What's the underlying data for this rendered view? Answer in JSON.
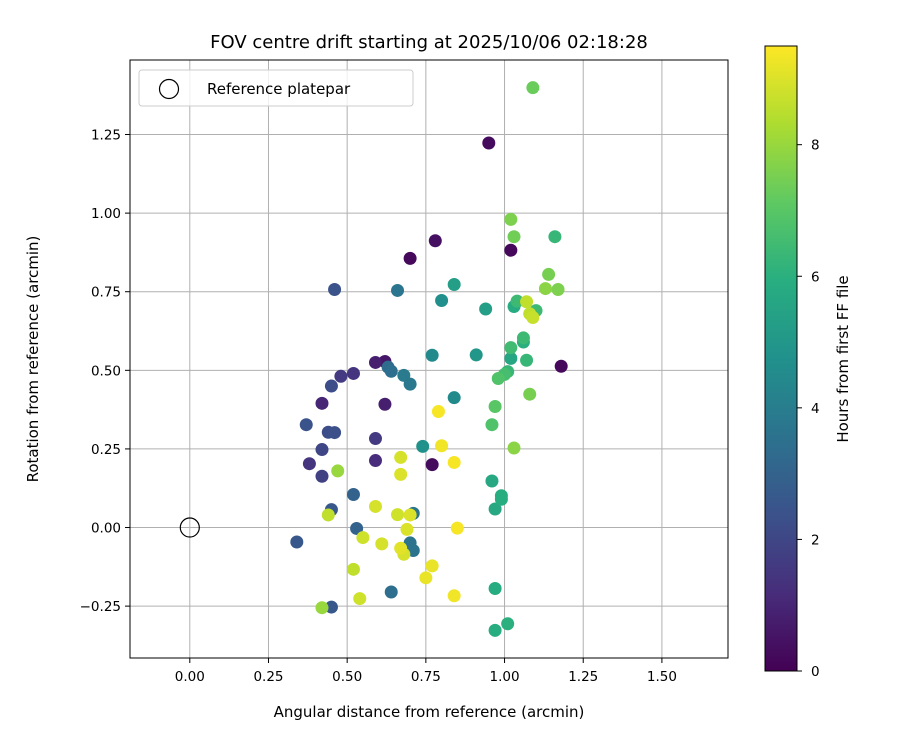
{
  "chart_data": {
    "type": "scatter",
    "title": "FOV centre drift starting at 2025/10/06 02:18:28",
    "xlabel": "Angular distance from reference (arcmin)",
    "ylabel": "Rotation from reference (arcmin)",
    "xlim": [
      -0.19,
      1.71
    ],
    "ylim": [
      -0.415,
      1.487
    ],
    "xticks": [
      0.0,
      0.25,
      0.5,
      0.75,
      1.0,
      1.25,
      1.5
    ],
    "xtick_labels": [
      "0.00",
      "0.25",
      "0.50",
      "0.75",
      "1.00",
      "1.25",
      "1.50"
    ],
    "yticks": [
      -0.25,
      0.0,
      0.25,
      0.5,
      0.75,
      1.0,
      1.25
    ],
    "ytick_labels": [
      "−0.25",
      "0.00",
      "0.25",
      "0.50",
      "0.75",
      "1.00",
      "1.25"
    ],
    "grid": true,
    "legend": {
      "position": "top-left",
      "entries": [
        "Reference platepar"
      ]
    },
    "reference_point": {
      "x": 0.0,
      "y": 0.0,
      "label": "Reference platepar"
    },
    "colorbar": {
      "label": "Hours from first FF file",
      "colormap": "viridis",
      "range": [
        0,
        9.5
      ],
      "ticks": [
        0,
        2,
        4,
        6,
        8
      ],
      "tick_labels": [
        "0",
        "2",
        "4",
        "6",
        "8"
      ]
    },
    "points": [
      {
        "x": 0.95,
        "y": 1.223,
        "h": 0.3
      },
      {
        "x": 1.18,
        "y": 0.513,
        "h": 0.2
      },
      {
        "x": 0.78,
        "y": 0.912,
        "h": 0.4
      },
      {
        "x": 0.7,
        "y": 0.856,
        "h": 0.2
      },
      {
        "x": 1.02,
        "y": 0.882,
        "h": 0.2
      },
      {
        "x": 0.77,
        "y": 0.2,
        "h": 0.3
      },
      {
        "x": 0.62,
        "y": 0.528,
        "h": 0.6
      },
      {
        "x": 0.59,
        "y": 0.525,
        "h": 0.8
      },
      {
        "x": 0.62,
        "y": 0.392,
        "h": 0.8
      },
      {
        "x": 0.42,
        "y": 0.395,
        "h": 1.0
      },
      {
        "x": 0.59,
        "y": 0.213,
        "h": 1.2
      },
      {
        "x": 0.38,
        "y": 0.203,
        "h": 1.4
      },
      {
        "x": 0.52,
        "y": 0.49,
        "h": 1.4
      },
      {
        "x": 0.48,
        "y": 0.481,
        "h": 1.6
      },
      {
        "x": 0.59,
        "y": 0.283,
        "h": 1.6
      },
      {
        "x": 0.42,
        "y": 0.163,
        "h": 1.8
      },
      {
        "x": 0.42,
        "y": 0.248,
        "h": 2.0
      },
      {
        "x": 0.45,
        "y": 0.45,
        "h": 2.2
      },
      {
        "x": 0.44,
        "y": 0.303,
        "h": 2.2
      },
      {
        "x": 0.46,
        "y": 0.302,
        "h": 2.3
      },
      {
        "x": 0.37,
        "y": 0.327,
        "h": 2.4
      },
      {
        "x": 0.34,
        "y": -0.046,
        "h": 2.6
      },
      {
        "x": 0.46,
        "y": 0.757,
        "h": 2.4
      },
      {
        "x": 0.45,
        "y": 0.057,
        "h": 2.6
      },
      {
        "x": 0.45,
        "y": -0.253,
        "h": 2.6
      },
      {
        "x": 0.52,
        "y": 0.105,
        "h": 3.0
      },
      {
        "x": 0.53,
        "y": -0.003,
        "h": 3.0
      },
      {
        "x": 0.63,
        "y": 0.51,
        "h": 3.3
      },
      {
        "x": 0.64,
        "y": 0.497,
        "h": 3.4
      },
      {
        "x": 0.64,
        "y": -0.205,
        "h": 3.4
      },
      {
        "x": 0.66,
        "y": 0.754,
        "h": 3.7
      },
      {
        "x": 0.68,
        "y": 0.484,
        "h": 3.9
      },
      {
        "x": 0.7,
        "y": 0.456,
        "h": 3.8
      },
      {
        "x": 0.71,
        "y": 0.045,
        "h": 3.6
      },
      {
        "x": 0.7,
        "y": -0.049,
        "h": 3.6
      },
      {
        "x": 0.71,
        "y": -0.073,
        "h": 3.6
      },
      {
        "x": 0.74,
        "y": 0.258,
        "h": 4.8
      },
      {
        "x": 0.77,
        "y": 0.548,
        "h": 4.5
      },
      {
        "x": 0.8,
        "y": 0.722,
        "h": 4.7
      },
      {
        "x": 0.84,
        "y": 0.773,
        "h": 5.3
      },
      {
        "x": 0.84,
        "y": 0.413,
        "h": 4.5
      },
      {
        "x": 0.91,
        "y": 0.549,
        "h": 5.0
      },
      {
        "x": 0.94,
        "y": 0.695,
        "h": 5.3
      },
      {
        "x": 0.96,
        "y": 0.148,
        "h": 5.7
      },
      {
        "x": 0.97,
        "y": 0.059,
        "h": 5.7
      },
      {
        "x": 0.99,
        "y": 0.09,
        "h": 5.9
      },
      {
        "x": 0.99,
        "y": 0.101,
        "h": 5.9
      },
      {
        "x": 0.97,
        "y": -0.194,
        "h": 5.8
      },
      {
        "x": 0.97,
        "y": -0.327,
        "h": 5.9
      },
      {
        "x": 1.01,
        "y": -0.306,
        "h": 6.0
      },
      {
        "x": 1.02,
        "y": 0.538,
        "h": 5.6
      },
      {
        "x": 1.03,
        "y": 0.703,
        "h": 5.8
      },
      {
        "x": 1.06,
        "y": 0.59,
        "h": 6.0
      },
      {
        "x": 1.07,
        "y": 0.532,
        "h": 6.3
      },
      {
        "x": 1.04,
        "y": 0.72,
        "h": 6.4
      },
      {
        "x": 1.16,
        "y": 0.925,
        "h": 6.3
      },
      {
        "x": 1.1,
        "y": 0.69,
        "h": 6.4
      },
      {
        "x": 1.06,
        "y": 0.603,
        "h": 6.4
      },
      {
        "x": 1.02,
        "y": 0.572,
        "h": 6.5
      },
      {
        "x": 1.01,
        "y": 0.496,
        "h": 6.3
      },
      {
        "x": 1.0,
        "y": 0.487,
        "h": 6.6
      },
      {
        "x": 0.98,
        "y": 0.474,
        "h": 6.8
      },
      {
        "x": 0.96,
        "y": 0.327,
        "h": 6.8
      },
      {
        "x": 0.97,
        "y": 0.385,
        "h": 7.0
      },
      {
        "x": 1.08,
        "y": 0.424,
        "h": 7.5
      },
      {
        "x": 1.03,
        "y": 0.925,
        "h": 7.4
      },
      {
        "x": 1.02,
        "y": 0.98,
        "h": 7.6
      },
      {
        "x": 1.09,
        "y": 1.399,
        "h": 7.3
      },
      {
        "x": 1.14,
        "y": 0.805,
        "h": 7.5
      },
      {
        "x": 1.13,
        "y": 0.76,
        "h": 7.8
      },
      {
        "x": 1.17,
        "y": 0.757,
        "h": 7.6
      },
      {
        "x": 1.03,
        "y": 0.253,
        "h": 7.8
      },
      {
        "x": 1.07,
        "y": 0.718,
        "h": 8.6
      },
      {
        "x": 1.08,
        "y": 0.68,
        "h": 8.6
      },
      {
        "x": 1.09,
        "y": 0.668,
        "h": 8.7
      },
      {
        "x": 0.47,
        "y": 0.18,
        "h": 8.0
      },
      {
        "x": 0.42,
        "y": -0.255,
        "h": 8.0
      },
      {
        "x": 0.44,
        "y": 0.04,
        "h": 8.6
      },
      {
        "x": 0.52,
        "y": -0.133,
        "h": 8.6
      },
      {
        "x": 0.55,
        "y": -0.032,
        "h": 8.8
      },
      {
        "x": 0.54,
        "y": -0.226,
        "h": 8.8
      },
      {
        "x": 0.59,
        "y": 0.067,
        "h": 8.9
      },
      {
        "x": 0.61,
        "y": -0.052,
        "h": 8.9
      },
      {
        "x": 0.66,
        "y": 0.041,
        "h": 8.8
      },
      {
        "x": 0.67,
        "y": 0.169,
        "h": 9.0
      },
      {
        "x": 0.67,
        "y": 0.223,
        "h": 8.9
      },
      {
        "x": 0.69,
        "y": -0.006,
        "h": 9.0
      },
      {
        "x": 0.7,
        "y": 0.04,
        "h": 9.0
      },
      {
        "x": 0.68,
        "y": -0.085,
        "h": 8.9
      },
      {
        "x": 0.67,
        "y": -0.066,
        "h": 9.1
      },
      {
        "x": 0.75,
        "y": -0.16,
        "h": 9.2
      },
      {
        "x": 0.77,
        "y": -0.122,
        "h": 9.2
      },
      {
        "x": 0.79,
        "y": 0.369,
        "h": 9.4
      },
      {
        "x": 0.8,
        "y": 0.26,
        "h": 9.3
      },
      {
        "x": 0.84,
        "y": 0.207,
        "h": 9.4
      },
      {
        "x": 0.85,
        "y": -0.002,
        "h": 9.4
      },
      {
        "x": 0.84,
        "y": -0.217,
        "h": 9.3
      }
    ]
  }
}
